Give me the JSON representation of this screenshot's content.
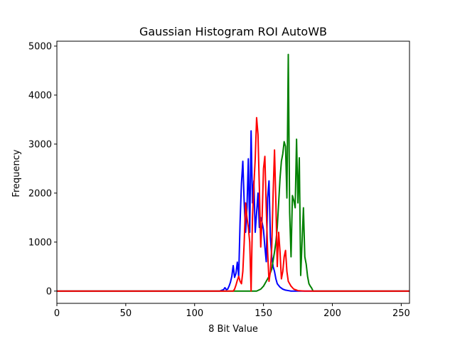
{
  "chart_data": {
    "type": "line",
    "title": "Gaussian Histogram ROI AutoWB",
    "xlabel": "8 Bit Value",
    "ylabel": "Frequency",
    "xlim": [
      0,
      256
    ],
    "ylim": [
      -250,
      5100
    ],
    "grid": false,
    "legend": "none",
    "x_ticks": [
      0,
      50,
      100,
      150,
      200,
      250
    ],
    "y_ticks": [
      0,
      1000,
      2000,
      3000,
      4000,
      5000
    ],
    "series": [
      {
        "color": "#0000ff",
        "points": [
          [
            0,
            0
          ],
          [
            118,
            0
          ],
          [
            121,
            30
          ],
          [
            122,
            70
          ],
          [
            123,
            30
          ],
          [
            124,
            40
          ],
          [
            125,
            100
          ],
          [
            126,
            180
          ],
          [
            127,
            300
          ],
          [
            128,
            520
          ],
          [
            129,
            280
          ],
          [
            130,
            360
          ],
          [
            131,
            590
          ],
          [
            132,
            300
          ],
          [
            133,
            1400
          ],
          [
            134,
            2200
          ],
          [
            135,
            2650
          ],
          [
            136,
            1800
          ],
          [
            137,
            1200
          ],
          [
            138,
            1700
          ],
          [
            139,
            2700
          ],
          [
            140,
            1200
          ],
          [
            141,
            3270
          ],
          [
            142,
            1800
          ],
          [
            143,
            2250
          ],
          [
            144,
            1200
          ],
          [
            145,
            1600
          ],
          [
            146,
            2000
          ],
          [
            147,
            1300
          ],
          [
            148,
            1500
          ],
          [
            149,
            1400
          ],
          [
            150,
            1250
          ],
          [
            151,
            900
          ],
          [
            152,
            600
          ],
          [
            153,
            1900
          ],
          [
            154,
            2250
          ],
          [
            155,
            1100
          ],
          [
            156,
            700
          ],
          [
            157,
            500
          ],
          [
            158,
            400
          ],
          [
            159,
            250
          ],
          [
            160,
            150
          ],
          [
            162,
            80
          ],
          [
            164,
            40
          ],
          [
            166,
            20
          ],
          [
            168,
            10
          ],
          [
            170,
            0
          ],
          [
            256,
            0
          ]
        ]
      },
      {
        "color": "#008000",
        "points": [
          [
            0,
            0
          ],
          [
            145,
            0
          ],
          [
            148,
            40
          ],
          [
            150,
            100
          ],
          [
            152,
            200
          ],
          [
            154,
            300
          ],
          [
            156,
            450
          ],
          [
            158,
            800
          ],
          [
            159,
            1000
          ],
          [
            160,
            1300
          ],
          [
            161,
            1800
          ],
          [
            162,
            2300
          ],
          [
            163,
            2650
          ],
          [
            164,
            2800
          ],
          [
            165,
            3050
          ],
          [
            166,
            2950
          ],
          [
            167,
            1900
          ],
          [
            168,
            4830
          ],
          [
            169,
            1600
          ],
          [
            170,
            700
          ],
          [
            171,
            1950
          ],
          [
            172,
            1850
          ],
          [
            173,
            1700
          ],
          [
            174,
            3100
          ],
          [
            175,
            1800
          ],
          [
            176,
            2720
          ],
          [
            177,
            320
          ],
          [
            178,
            1000
          ],
          [
            179,
            1700
          ],
          [
            180,
            700
          ],
          [
            181,
            550
          ],
          [
            182,
            300
          ],
          [
            183,
            150
          ],
          [
            184,
            100
          ],
          [
            185,
            60
          ],
          [
            186,
            0
          ],
          [
            256,
            0
          ]
        ]
      },
      {
        "color": "#ff0000",
        "points": [
          [
            0,
            0
          ],
          [
            128,
            0
          ],
          [
            129,
            40
          ],
          [
            130,
            120
          ],
          [
            131,
            220
          ],
          [
            132,
            300
          ],
          [
            133,
            200
          ],
          [
            134,
            150
          ],
          [
            135,
            400
          ],
          [
            136,
            1000
          ],
          [
            137,
            1800
          ],
          [
            138,
            1500
          ],
          [
            139,
            1300
          ],
          [
            140,
            1000
          ],
          [
            141,
            0
          ],
          [
            142,
            1500
          ],
          [
            143,
            2150
          ],
          [
            144,
            2700
          ],
          [
            145,
            3540
          ],
          [
            146,
            3200
          ],
          [
            147,
            2100
          ],
          [
            148,
            900
          ],
          [
            149,
            1500
          ],
          [
            150,
            2500
          ],
          [
            151,
            2750
          ],
          [
            152,
            1700
          ],
          [
            153,
            800
          ],
          [
            154,
            200
          ],
          [
            155,
            400
          ],
          [
            156,
            900
          ],
          [
            157,
            2000
          ],
          [
            158,
            2880
          ],
          [
            159,
            1800
          ],
          [
            160,
            500
          ],
          [
            161,
            1200
          ],
          [
            162,
            800
          ],
          [
            163,
            250
          ],
          [
            164,
            400
          ],
          [
            165,
            700
          ],
          [
            166,
            830
          ],
          [
            167,
            400
          ],
          [
            168,
            200
          ],
          [
            170,
            100
          ],
          [
            172,
            40
          ],
          [
            175,
            10
          ],
          [
            180,
            0
          ],
          [
            256,
            0
          ]
        ]
      }
    ]
  }
}
